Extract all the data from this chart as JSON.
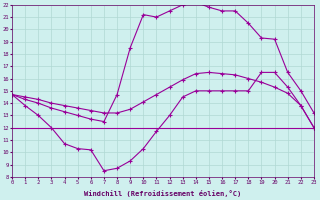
{
  "xlabel": "Windchill (Refroidissement éolien,°C)",
  "bg_color": "#cff0ee",
  "grid_color": "#b0d8d4",
  "line_color": "#990099",
  "xlim": [
    0,
    23
  ],
  "ylim": [
    8,
    22
  ],
  "xticks": [
    0,
    1,
    2,
    3,
    4,
    5,
    6,
    7,
    8,
    9,
    10,
    11,
    12,
    13,
    14,
    15,
    16,
    17,
    18,
    19,
    20,
    21,
    22,
    23
  ],
  "yticks": [
    8,
    9,
    10,
    11,
    12,
    13,
    14,
    15,
    16,
    17,
    18,
    19,
    20,
    21,
    22
  ],
  "line1_x": [
    0,
    1,
    2,
    3,
    4,
    5,
    6,
    7,
    8,
    9,
    10,
    11,
    12,
    13,
    14,
    15,
    16,
    17,
    18,
    19,
    20,
    21,
    22,
    23
  ],
  "line1_y": [
    14.7,
    13.8,
    13.0,
    12.0,
    10.7,
    10.3,
    10.2,
    8.5,
    8.7,
    9.3,
    10.3,
    11.7,
    13.0,
    14.5,
    15.0,
    15.0,
    15.0,
    15.0,
    15.0,
    16.5,
    16.5,
    15.3,
    13.8,
    12.0
  ],
  "line2_x": [
    0,
    1,
    2,
    3,
    4,
    5,
    6,
    7,
    8,
    9,
    10,
    11,
    12,
    13,
    14,
    15,
    16,
    17,
    18,
    19,
    20,
    21,
    22,
    23
  ],
  "line2_y": [
    14.7,
    14.5,
    14.3,
    14.0,
    13.8,
    13.6,
    13.4,
    13.2,
    13.2,
    13.5,
    14.1,
    14.7,
    15.3,
    15.9,
    16.4,
    16.5,
    16.4,
    16.3,
    16.0,
    15.7,
    15.3,
    14.8,
    13.8,
    12.0
  ],
  "line3_x": [
    0,
    1,
    2,
    3,
    4,
    5,
    6,
    7,
    8,
    9,
    10,
    11,
    12,
    13,
    14,
    15,
    16,
    17,
    18,
    19,
    20,
    21,
    22,
    23
  ],
  "line3_y": [
    14.7,
    14.3,
    14.0,
    13.6,
    13.3,
    13.0,
    12.7,
    12.5,
    14.7,
    18.5,
    21.2,
    21.0,
    21.5,
    22.0,
    22.2,
    21.8,
    21.5,
    21.5,
    20.5,
    19.3,
    19.2,
    16.5,
    15.0,
    13.2
  ],
  "line4_x": [
    0,
    16,
    23
  ],
  "line4_y": [
    12.0,
    12.0,
    12.0
  ]
}
